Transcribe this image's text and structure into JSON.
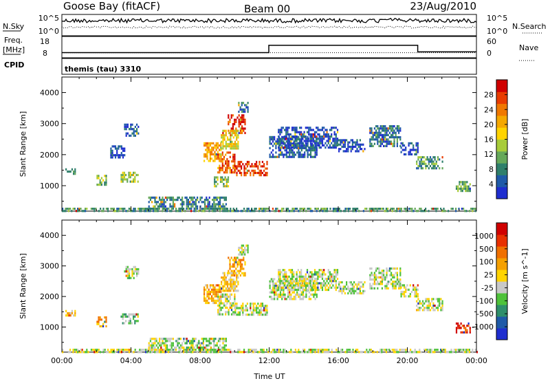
{
  "header": {
    "station": "Goose Bay (fitACF)",
    "beam": "Beam 00",
    "date": "23/Aug/2010"
  },
  "status_panel": {
    "nsky_label": "N.Sky",
    "nsky_tick_top": "10^5",
    "nsky_tick_bottom": "10^0",
    "nsearch_label": "N.Search",
    "nsearch_tick_top": "10^5",
    "nsearch_tick_bottom": "10^0",
    "freq_label_1": "Freq.",
    "freq_label_2": "[MHz]",
    "freq_tick_top": "18",
    "freq_tick_bottom": "8",
    "nave_label": "Nave",
    "nave_tick_top": "60",
    "nave_tick_bottom": "0",
    "cpid_label": "CPID",
    "cpid_value": "themis (tau) 3310"
  },
  "status_data": {
    "freq_step_times_h": [
      0,
      11.98,
      20.6,
      24
    ],
    "freq_step_values_mhz": [
      10.5,
      15.3,
      11.0,
      11.0
    ],
    "nave_level": 12
  },
  "chart_data": [
    {
      "type": "heatmap",
      "panel": "power",
      "xlabel": "",
      "ylabel": "Slant Range [km]",
      "xlim": [
        0,
        24
      ],
      "ylim": [
        180,
        4500
      ],
      "y_ticks": [
        1000,
        2000,
        3000,
        4000
      ],
      "colorbar_label": "Power [dB]",
      "colorbar_ticks": [
        "28",
        "24",
        "20",
        "16",
        "12",
        "8",
        "4"
      ],
      "colorbar_colors": [
        "#1f2ecf",
        "#1f5aa8",
        "#2f7f6b",
        "#66a85a",
        "#a8cc3a",
        "#ffd400",
        "#f5a800",
        "#f07800",
        "#e83c00",
        "#d00000"
      ],
      "echo_regions": [
        {
          "t0": 0.2,
          "t1": 0.8,
          "r0": 1380,
          "r1": 1560,
          "level": 0.3
        },
        {
          "t0": 2.0,
          "t1": 2.6,
          "r0": 1050,
          "r1": 1350,
          "level": 0.4
        },
        {
          "t0": 3.4,
          "t1": 4.4,
          "r0": 1100,
          "r1": 1450,
          "level": 0.45
        },
        {
          "t0": 3.6,
          "t1": 4.4,
          "r0": 2600,
          "r1": 3000,
          "level": 0.15
        },
        {
          "t0": 2.8,
          "t1": 3.6,
          "r0": 1900,
          "r1": 2300,
          "level": 0.1
        },
        {
          "t0": 5.0,
          "t1": 9.5,
          "r0": 250,
          "r1": 650,
          "level": 0.22
        },
        {
          "t0": 8.2,
          "t1": 9.2,
          "r0": 1800,
          "r1": 2400,
          "level": 0.65
        },
        {
          "t0": 9.0,
          "t1": 10.0,
          "r0": 1400,
          "r1": 2100,
          "level": 0.8
        },
        {
          "t0": 10.0,
          "t1": 11.9,
          "r0": 1350,
          "r1": 1800,
          "level": 0.85
        },
        {
          "t0": 9.6,
          "t1": 10.6,
          "r0": 2700,
          "r1": 3300,
          "level": 0.9
        },
        {
          "t0": 9.2,
          "t1": 10.2,
          "r0": 2200,
          "r1": 2800,
          "level": 0.55
        },
        {
          "t0": 8.8,
          "t1": 9.6,
          "r0": 1000,
          "r1": 1300,
          "level": 0.4
        },
        {
          "t0": 10.2,
          "t1": 10.8,
          "r0": 3400,
          "r1": 3700,
          "level": 0.2
        },
        {
          "t0": 12.0,
          "t1": 14.8,
          "r0": 1900,
          "r1": 2600,
          "level": 0.15
        },
        {
          "t0": 12.5,
          "t1": 16.0,
          "r0": 2200,
          "r1": 2900,
          "level": 0.12
        },
        {
          "t0": 16.0,
          "t1": 17.5,
          "r0": 2100,
          "r1": 2500,
          "level": 0.1
        },
        {
          "t0": 17.8,
          "t1": 19.6,
          "r0": 2300,
          "r1": 2950,
          "level": 0.2
        },
        {
          "t0": 19.6,
          "t1": 20.6,
          "r0": 2000,
          "r1": 2400,
          "level": 0.12
        },
        {
          "t0": 20.5,
          "t1": 22.0,
          "r0": 1550,
          "r1": 1950,
          "level": 0.32
        },
        {
          "t0": 22.8,
          "t1": 23.6,
          "r0": 850,
          "r1": 1150,
          "level": 0.35
        },
        {
          "t0": 0.0,
          "t1": 24.0,
          "r0": 190,
          "r1": 290,
          "level": 0.3
        }
      ]
    },
    {
      "type": "heatmap",
      "panel": "velocity",
      "xlabel": "Time UT",
      "ylabel": "Slant Range [km]",
      "xlim": [
        0,
        24
      ],
      "ylim": [
        180,
        4500
      ],
      "x_tick_labels": [
        "00:00",
        "04:00",
        "08:00",
        "12:00",
        "16:00",
        "20:00",
        "00:00"
      ],
      "y_ticks": [
        1000,
        2000,
        3000,
        4000
      ],
      "colorbar_label": "Velocity [m s^-1]",
      "colorbar_ticks": [
        "1000",
        "500",
        "100",
        "25",
        "-25",
        "-100",
        "-500",
        "-1000"
      ],
      "colorbar_colors": [
        "#1f2ecf",
        "#1f5aa8",
        "#2f8f6b",
        "#4ec23a",
        "#c8c8c8",
        "#ffd400",
        "#f5a000",
        "#f07000",
        "#e83000",
        "#d00000"
      ],
      "echo_regions": [
        {
          "t0": 0.2,
          "t1": 0.8,
          "r0": 1380,
          "r1": 1560,
          "level": 0.6
        },
        {
          "t0": 2.0,
          "t1": 2.6,
          "r0": 1050,
          "r1": 1350,
          "level": 0.65
        },
        {
          "t0": 3.4,
          "t1": 4.4,
          "r0": 1100,
          "r1": 1450,
          "level": 0.35
        },
        {
          "t0": 3.6,
          "t1": 4.4,
          "r0": 2600,
          "r1": 3000,
          "level": 0.45
        },
        {
          "t0": 5.0,
          "t1": 9.5,
          "r0": 250,
          "r1": 650,
          "level": 0.42
        },
        {
          "t0": 8.2,
          "t1": 9.2,
          "r0": 1800,
          "r1": 2400,
          "level": 0.62
        },
        {
          "t0": 9.0,
          "t1": 10.0,
          "r0": 1400,
          "r1": 2100,
          "level": 0.45
        },
        {
          "t0": 10.0,
          "t1": 11.9,
          "r0": 1400,
          "r1": 1800,
          "level": 0.45
        },
        {
          "t0": 9.6,
          "t1": 10.6,
          "r0": 2700,
          "r1": 3300,
          "level": 0.65
        },
        {
          "t0": 9.2,
          "t1": 10.2,
          "r0": 2200,
          "r1": 2800,
          "level": 0.55
        },
        {
          "t0": 10.2,
          "t1": 10.8,
          "r0": 3400,
          "r1": 3700,
          "level": 0.45
        },
        {
          "t0": 12.0,
          "t1": 14.8,
          "r0": 1900,
          "r1": 2600,
          "level": 0.45
        },
        {
          "t0": 12.5,
          "t1": 16.0,
          "r0": 2200,
          "r1": 2900,
          "level": 0.45
        },
        {
          "t0": 16.0,
          "t1": 17.5,
          "r0": 2100,
          "r1": 2500,
          "level": 0.45
        },
        {
          "t0": 17.8,
          "t1": 19.6,
          "r0": 2300,
          "r1": 2950,
          "level": 0.45
        },
        {
          "t0": 19.6,
          "t1": 20.6,
          "r0": 2000,
          "r1": 2400,
          "level": 0.45
        },
        {
          "t0": 20.5,
          "t1": 22.0,
          "r0": 1550,
          "r1": 1950,
          "level": 0.45
        },
        {
          "t0": 22.8,
          "t1": 23.6,
          "r0": 850,
          "r1": 1150,
          "level": 0.85
        },
        {
          "t0": 0.0,
          "t1": 24.0,
          "r0": 190,
          "r1": 290,
          "level": 0.45
        }
      ]
    }
  ]
}
